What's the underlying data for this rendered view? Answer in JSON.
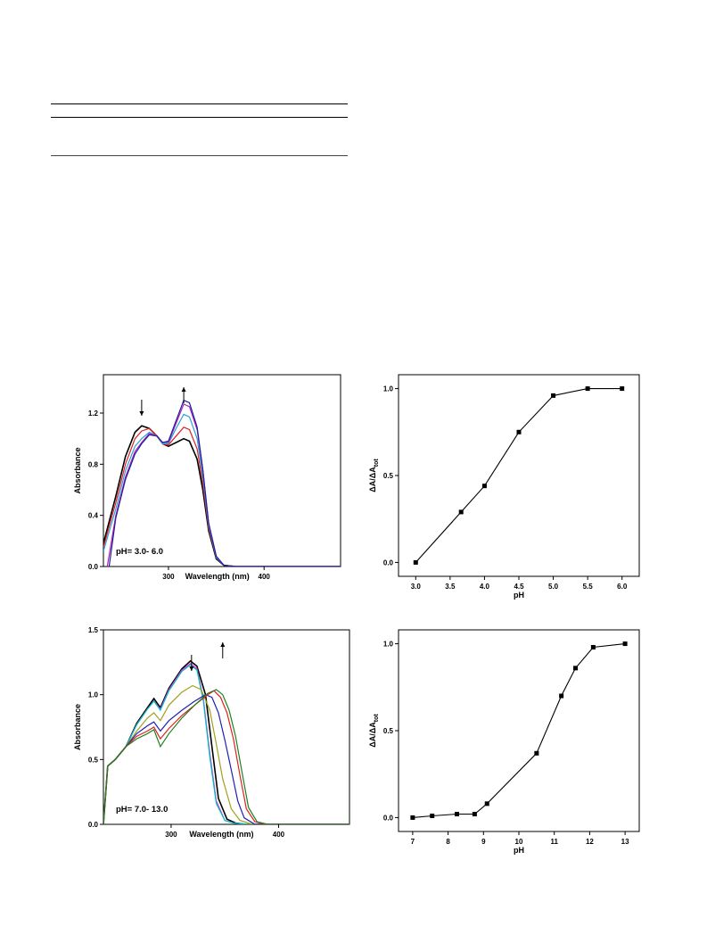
{
  "chart_data": [
    {
      "type": "line",
      "xlabel": "Wavelength (nm)",
      "ylabel": "Absorbance",
      "annotation": "pH= 3.0- 6.0",
      "xlim": [
        232,
        480
      ],
      "ylim": [
        0,
        1.5
      ],
      "xticks": [
        300,
        400
      ],
      "yticks": [
        0.0,
        0.4,
        0.8,
        1.2
      ],
      "ytick_labels": [
        "0.0",
        "0.4",
        "0.8",
        "1.2"
      ],
      "arrows": [
        {
          "x": 272,
          "dir": "down"
        },
        {
          "x": 316,
          "dir": "up"
        }
      ],
      "series": [
        {
          "color": "#000000",
          "values": [
            [
              232,
              0.18
            ],
            [
              245,
              0.55
            ],
            [
              255,
              0.86
            ],
            [
              265,
              1.05
            ],
            [
              272,
              1.1
            ],
            [
              280,
              1.08
            ],
            [
              288,
              1.02
            ],
            [
              294,
              0.96
            ],
            [
              300,
              0.94
            ],
            [
              308,
              0.97
            ],
            [
              316,
              1.0
            ],
            [
              322,
              0.98
            ],
            [
              330,
              0.84
            ],
            [
              336,
              0.6
            ],
            [
              342,
              0.28
            ],
            [
              350,
              0.06
            ],
            [
              358,
              0.01
            ],
            [
              370,
              0.0
            ],
            [
              400,
              0.0
            ],
            [
              480,
              0.0
            ]
          ]
        },
        {
          "color": "#e02020",
          "values": [
            [
              232,
              0.15
            ],
            [
              245,
              0.5
            ],
            [
              255,
              0.8
            ],
            [
              265,
              1.0
            ],
            [
              272,
              1.06
            ],
            [
              280,
              1.08
            ],
            [
              288,
              1.02
            ],
            [
              294,
              0.96
            ],
            [
              300,
              0.95
            ],
            [
              308,
              1.02
            ],
            [
              316,
              1.09
            ],
            [
              322,
              1.07
            ],
            [
              330,
              0.92
            ],
            [
              336,
              0.65
            ],
            [
              342,
              0.3
            ],
            [
              350,
              0.07
            ],
            [
              358,
              0.01
            ],
            [
              370,
              0.0
            ],
            [
              400,
              0.0
            ],
            [
              480,
              0.0
            ]
          ]
        },
        {
          "color": "#2aa0d8",
          "values": [
            [
              232,
              0.12
            ],
            [
              245,
              0.45
            ],
            [
              255,
              0.75
            ],
            [
              265,
              0.94
            ],
            [
              272,
              1.0
            ],
            [
              280,
              1.05
            ],
            [
              288,
              1.02
            ],
            [
              294,
              0.96
            ],
            [
              300,
              0.96
            ],
            [
              308,
              1.08
            ],
            [
              316,
              1.19
            ],
            [
              322,
              1.17
            ],
            [
              330,
              1.0
            ],
            [
              336,
              0.7
            ],
            [
              342,
              0.32
            ],
            [
              350,
              0.07
            ],
            [
              358,
              0.01
            ],
            [
              370,
              0.0
            ],
            [
              400,
              0.0
            ],
            [
              480,
              0.0
            ]
          ]
        },
        {
          "color": "#b020b0",
          "values": [
            [
              236,
              0.0
            ],
            [
              245,
              0.4
            ],
            [
              255,
              0.7
            ],
            [
              265,
              0.9
            ],
            [
              272,
              0.97
            ],
            [
              280,
              1.04
            ],
            [
              288,
              1.02
            ],
            [
              294,
              0.97
            ],
            [
              300,
              0.97
            ],
            [
              308,
              1.12
            ],
            [
              316,
              1.27
            ],
            [
              322,
              1.25
            ],
            [
              330,
              1.07
            ],
            [
              336,
              0.75
            ],
            [
              342,
              0.34
            ],
            [
              350,
              0.08
            ],
            [
              358,
              0.01
            ],
            [
              370,
              0.0
            ],
            [
              400,
              0.0
            ],
            [
              480,
              0.0
            ]
          ]
        },
        {
          "color": "#2020a0",
          "values": [
            [
              238,
              0.0
            ],
            [
              245,
              0.38
            ],
            [
              255,
              0.68
            ],
            [
              265,
              0.88
            ],
            [
              272,
              0.96
            ],
            [
              280,
              1.03
            ],
            [
              288,
              1.02
            ],
            [
              294,
              0.97
            ],
            [
              300,
              0.98
            ],
            [
              308,
              1.14
            ],
            [
              316,
              1.3
            ],
            [
              322,
              1.28
            ],
            [
              330,
              1.09
            ],
            [
              336,
              0.76
            ],
            [
              342,
              0.34
            ],
            [
              350,
              0.08
            ],
            [
              358,
              0.01
            ],
            [
              370,
              0.0
            ],
            [
              400,
              0.0
            ],
            [
              480,
              0.0
            ]
          ]
        }
      ]
    },
    {
      "type": "line",
      "xlabel": "pH",
      "ylabel": "ΔA/ΔAtot",
      "xlim": [
        2.75,
        6.25
      ],
      "ylim": [
        -0.08,
        1.08
      ],
      "xticks": [
        3.0,
        3.5,
        4.0,
        4.5,
        5.0,
        5.5,
        6.0
      ],
      "xtick_labels": [
        "3.0",
        "3.5",
        "4.0",
        "4.5",
        "5.0",
        "5.5",
        "6.0"
      ],
      "yticks": [
        0.0,
        0.5,
        1.0
      ],
      "ytick_labels": [
        "0.0",
        "0.5",
        "1.0"
      ],
      "x": [
        3.0,
        3.66,
        4.0,
        4.5,
        5.0,
        5.5,
        6.0
      ],
      "values": [
        0.0,
        0.29,
        0.44,
        0.75,
        0.96,
        1.0,
        1.0
      ]
    },
    {
      "type": "line",
      "xlabel": "Wavelength (nm)",
      "ylabel": "Absorbance",
      "annotation": "pH= 7.0- 13.0",
      "xlim": [
        237,
        466
      ],
      "ylim": [
        0,
        1.5
      ],
      "xticks": [
        300,
        400
      ],
      "yticks": [
        0.0,
        0.5,
        1.0,
        1.5
      ],
      "ytick_labels": [
        "0.0",
        "0.5",
        "1.0",
        "1.5"
      ],
      "arrows": [
        {
          "x": 319,
          "dir": "down"
        },
        {
          "x": 348,
          "dir": "up"
        }
      ],
      "series": [
        {
          "color": "#000000",
          "values": [
            [
              237,
              0.0
            ],
            [
              241,
              0.45
            ],
            [
              248,
              0.5
            ],
            [
              258,
              0.6
            ],
            [
              268,
              0.78
            ],
            [
              278,
              0.9
            ],
            [
              284,
              0.97
            ],
            [
              290,
              0.9
            ],
            [
              298,
              1.05
            ],
            [
              310,
              1.2
            ],
            [
              318,
              1.26
            ],
            [
              324,
              1.22
            ],
            [
              332,
              1.0
            ],
            [
              338,
              0.6
            ],
            [
              344,
              0.2
            ],
            [
              352,
              0.04
            ],
            [
              360,
              0.01
            ],
            [
              370,
              0.0
            ],
            [
              466,
              0.0
            ]
          ]
        },
        {
          "color": "#e030e0",
          "values": [
            [
              237,
              0.0
            ],
            [
              241,
              0.45
            ],
            [
              248,
              0.5
            ],
            [
              258,
              0.6
            ],
            [
              268,
              0.77
            ],
            [
              278,
              0.89
            ],
            [
              284,
              0.95
            ],
            [
              290,
              0.89
            ],
            [
              298,
              1.04
            ],
            [
              310,
              1.19
            ],
            [
              318,
              1.24
            ],
            [
              324,
              1.2
            ],
            [
              330,
              0.97
            ],
            [
              336,
              0.55
            ],
            [
              342,
              0.18
            ],
            [
              350,
              0.03
            ],
            [
              358,
              0.01
            ],
            [
              370,
              0.0
            ],
            [
              466,
              0.0
            ]
          ]
        },
        {
          "color": "#00c0c0",
          "values": [
            [
              237,
              0.0
            ],
            [
              241,
              0.45
            ],
            [
              248,
              0.5
            ],
            [
              258,
              0.6
            ],
            [
              268,
              0.77
            ],
            [
              278,
              0.89
            ],
            [
              284,
              0.95
            ],
            [
              290,
              0.88
            ],
            [
              298,
              1.03
            ],
            [
              310,
              1.18
            ],
            [
              318,
              1.23
            ],
            [
              324,
              1.19
            ],
            [
              330,
              0.95
            ],
            [
              336,
              0.52
            ],
            [
              342,
              0.16
            ],
            [
              350,
              0.03
            ],
            [
              358,
              0.01
            ],
            [
              370,
              0.0
            ],
            [
              466,
              0.0
            ]
          ]
        },
        {
          "color": "#a0a020",
          "values": [
            [
              237,
              0.0
            ],
            [
              241,
              0.45
            ],
            [
              248,
              0.5
            ],
            [
              258,
              0.6
            ],
            [
              268,
              0.72
            ],
            [
              278,
              0.82
            ],
            [
              284,
              0.86
            ],
            [
              290,
              0.8
            ],
            [
              298,
              0.92
            ],
            [
              310,
              1.02
            ],
            [
              320,
              1.07
            ],
            [
              328,
              1.04
            ],
            [
              336,
              0.88
            ],
            [
              342,
              0.62
            ],
            [
              348,
              0.35
            ],
            [
              356,
              0.12
            ],
            [
              364,
              0.03
            ],
            [
              376,
              0.0
            ],
            [
              466,
              0.0
            ]
          ]
        },
        {
          "color": "#2020b0",
          "values": [
            [
              237,
              0.0
            ],
            [
              241,
              0.45
            ],
            [
              248,
              0.5
            ],
            [
              258,
              0.6
            ],
            [
              268,
              0.7
            ],
            [
              278,
              0.76
            ],
            [
              284,
              0.79
            ],
            [
              290,
              0.72
            ],
            [
              298,
              0.8
            ],
            [
              310,
              0.88
            ],
            [
              322,
              0.95
            ],
            [
              332,
              1.0
            ],
            [
              338,
              0.98
            ],
            [
              344,
              0.86
            ],
            [
              350,
              0.65
            ],
            [
              356,
              0.42
            ],
            [
              362,
              0.18
            ],
            [
              368,
              0.05
            ],
            [
              378,
              0.0
            ],
            [
              466,
              0.0
            ]
          ]
        },
        {
          "color": "#e02020",
          "values": [
            [
              237,
              0.0
            ],
            [
              241,
              0.45
            ],
            [
              248,
              0.5
            ],
            [
              258,
              0.6
            ],
            [
              268,
              0.68
            ],
            [
              278,
              0.72
            ],
            [
              284,
              0.75
            ],
            [
              290,
              0.66
            ],
            [
              298,
              0.74
            ],
            [
              310,
              0.84
            ],
            [
              322,
              0.92
            ],
            [
              334,
              1.0
            ],
            [
              340,
              1.03
            ],
            [
              346,
              0.98
            ],
            [
              352,
              0.86
            ],
            [
              358,
              0.66
            ],
            [
              364,
              0.38
            ],
            [
              370,
              0.12
            ],
            [
              378,
              0.02
            ],
            [
              388,
              0.0
            ],
            [
              466,
              0.0
            ]
          ]
        },
        {
          "color": "#208020",
          "values": [
            [
              237,
              0.0
            ],
            [
              241,
              0.45
            ],
            [
              248,
              0.5
            ],
            [
              258,
              0.6
            ],
            [
              268,
              0.66
            ],
            [
              278,
              0.7
            ],
            [
              284,
              0.73
            ],
            [
              290,
              0.6
            ],
            [
              298,
              0.7
            ],
            [
              310,
              0.82
            ],
            [
              322,
              0.92
            ],
            [
              334,
              1.01
            ],
            [
              342,
              1.04
            ],
            [
              348,
              1.0
            ],
            [
              354,
              0.88
            ],
            [
              360,
              0.68
            ],
            [
              366,
              0.4
            ],
            [
              372,
              0.13
            ],
            [
              380,
              0.02
            ],
            [
              390,
              0.0
            ],
            [
              466,
              0.0
            ]
          ]
        }
      ]
    },
    {
      "type": "line",
      "xlabel": "pH",
      "ylabel": "ΔA/ΔAtot",
      "xlim": [
        6.6,
        13.4
      ],
      "ylim": [
        -0.08,
        1.08
      ],
      "xticks": [
        7,
        8,
        9,
        10,
        11,
        12,
        13
      ],
      "xtick_labels": [
        "7",
        "8",
        "9",
        "10",
        "11",
        "12",
        "13"
      ],
      "yticks": [
        0.0,
        0.5,
        1.0
      ],
      "ytick_labels": [
        "0.0",
        "0.5",
        "1.0"
      ],
      "x": [
        7.0,
        7.55,
        8.25,
        8.75,
        9.1,
        10.5,
        11.2,
        11.6,
        12.1,
        13.0
      ],
      "values": [
        0.0,
        0.01,
        0.02,
        0.02,
        0.08,
        0.37,
        0.7,
        0.86,
        0.98,
        1.0
      ]
    }
  ]
}
